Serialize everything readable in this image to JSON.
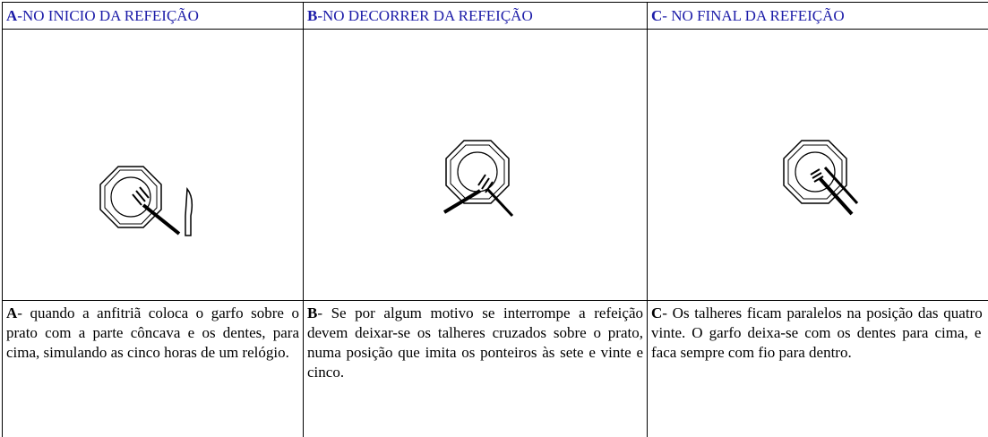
{
  "table": {
    "columns": [
      {
        "header": {
          "letter": "A",
          "text": "-NO INICIO DA REFEIÇÃO"
        },
        "body": {
          "letter": "A",
          "text": "- quando a anfitriã coloca o garfo sobre o prato com a parte côncava e os dentes,  para cima, simulando as cinco horas de um relógio."
        }
      },
      {
        "header": {
          "letter": "B",
          "text": "-NO DECORRER DA REFEIÇÃO"
        },
        "body": {
          "letter": "B",
          "text": "-  Se por algum motivo se interrompe a refeição devem deixar-se os talheres cruzados sobre o prato, numa posição que imita os ponteiros às sete e vinte e cinco."
        }
      },
      {
        "header": {
          "letter": "C",
          "text": "- NO FINAL DA REFEIÇÃO"
        },
        "body": {
          "letter": "C",
          "text": "- Os talheres ficam paralelos na posição das quatro e vinte. O garfo deixa-se com os dentes para cima, e a faca sempre com fio para dentro."
        }
      }
    ]
  }
}
